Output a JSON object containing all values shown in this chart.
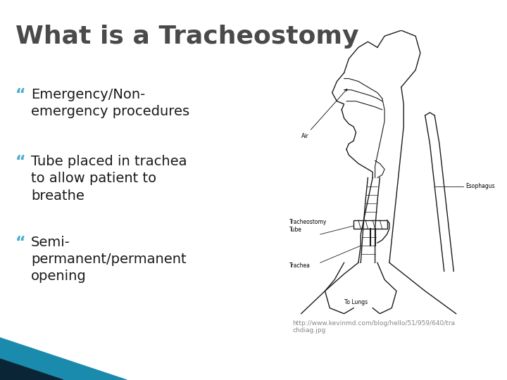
{
  "title": "What is a Tracheostomy",
  "title_color": "#4a4a4a",
  "title_size": 26,
  "bullet_marker_color": "#4aabcc",
  "bullet_text_color": "#1a1a1a",
  "background_color": "#ffffff",
  "bullets": [
    "Emergency/Non-\nemergency procedures",
    "Tube placed in trachea\nto allow patient to\nbreathe",
    "Semi-\npermanent/permanent\nopening"
  ],
  "bullet_marker": "“",
  "bullet_fontsize": 14,
  "bullet_marker_fontsize": 16,
  "caption": "http://www.kevinmd.com/blog/hello/51/959/640/tra\nchdiag.jpg",
  "caption_color": "#888888",
  "caption_size": 6.5,
  "footer_teal": "#1a8aad",
  "footer_dark": "#0a2535"
}
